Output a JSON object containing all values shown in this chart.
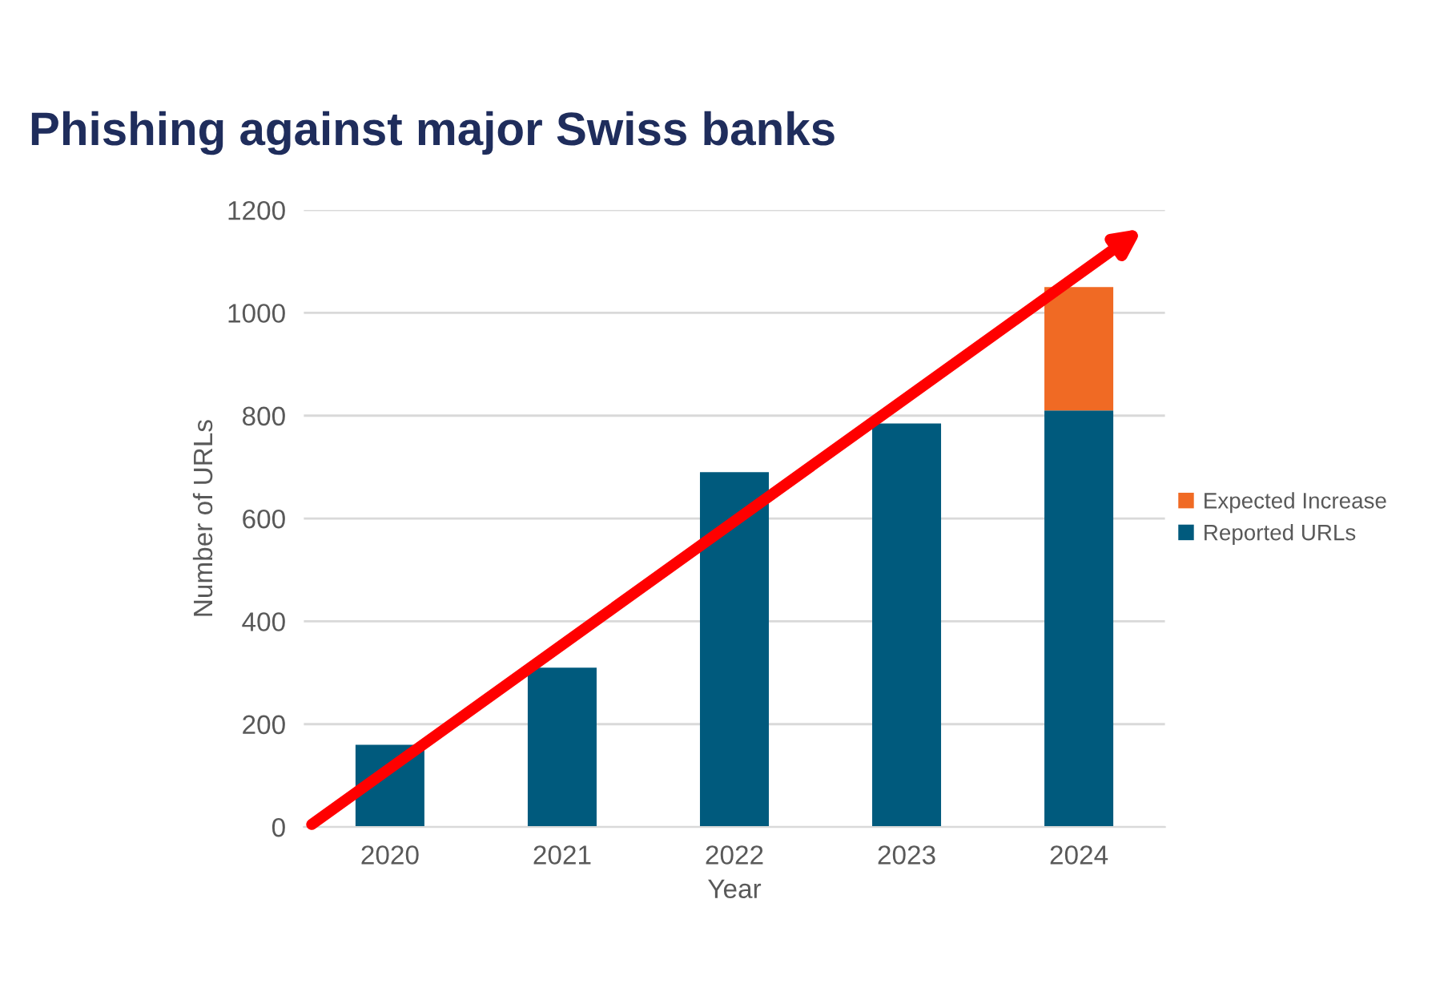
{
  "chart_data": {
    "type": "bar",
    "title": "Phishing against major Swiss banks",
    "xlabel": "Year",
    "ylabel": "Number of URLs",
    "categories": [
      "2020",
      "2021",
      "2022",
      "2023",
      "2024"
    ],
    "series": [
      {
        "name": "Reported URLs",
        "color": "#005a7d",
        "values": [
          160,
          310,
          690,
          785,
          810
        ]
      },
      {
        "name": "Expected Increase",
        "color": "#f06a24",
        "values": [
          null,
          null,
          null,
          null,
          240
        ]
      }
    ],
    "stacked": true,
    "ylim": [
      0,
      1200
    ],
    "yticks": [
      0,
      200,
      400,
      600,
      800,
      1000,
      1200
    ],
    "grid": "y",
    "legend": "right"
  }
}
